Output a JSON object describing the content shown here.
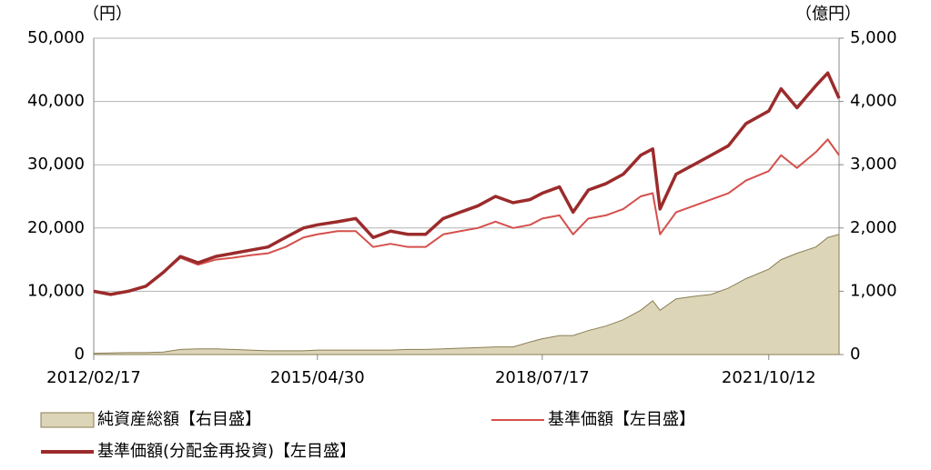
{
  "chart_data": {
    "type": "line",
    "y_label": "（円）",
    "y2_label": "（億円）",
    "x": [
      "2012/02/17",
      "2012/05/15",
      "2012/08/15",
      "2012/11/15",
      "2013/02/15",
      "2013/05/15",
      "2013/08/15",
      "2013/11/15",
      "2014/02/14",
      "2014/05/15",
      "2014/08/15",
      "2014/11/14",
      "2015/02/16",
      "2015/04/30",
      "2015/08/14",
      "2015/11/16",
      "2016/02/15",
      "2016/05/16",
      "2016/08/15",
      "2016/11/15",
      "2017/02/15",
      "2017/05/15",
      "2017/08/15",
      "2017/11/15",
      "2018/02/15",
      "2018/05/15",
      "2018/07/17",
      "2018/10/15",
      "2018/12/25",
      "2019/03/15",
      "2019/06/14",
      "2019/09/13",
      "2019/12/13",
      "2020/02/14",
      "2020/03/23",
      "2020/06/15",
      "2020/09/15",
      "2020/12/15",
      "2021/03/15",
      "2021/06/15",
      "2021/10/12",
      "2021/12/15",
      "2022/03/08",
      "2022/06/15",
      "2022/08/16",
      "2022/10/14"
    ],
    "xlim": [
      "2012/02/17",
      "2022/10/14"
    ],
    "xticks": [
      "2012/02/17",
      "2015/04/30",
      "2018/07/17",
      "2021/10/12"
    ],
    "ylim": [
      0,
      50000
    ],
    "yticks": [
      0,
      {
        "value": 10000,
        "label": "10,000"
      },
      {
        "value": 20000,
        "label": "20,000"
      },
      {
        "value": 30000,
        "label": "30,000"
      },
      {
        "value": 40000,
        "label": "40,000"
      },
      {
        "value": 50000,
        "label": "50,000"
      }
    ],
    "y2lim": [
      0,
      5000
    ],
    "y2ticks": [
      0,
      {
        "value": 1000,
        "label": "1,000"
      },
      {
        "value": 2000,
        "label": "2,000"
      },
      {
        "value": 3000,
        "label": "3,000"
      },
      {
        "value": 4000,
        "label": "4,000"
      },
      {
        "value": 5000,
        "label": "5,000"
      }
    ],
    "grid": true,
    "series": [
      {
        "name": "純資産総額【右目盛】",
        "type": "area",
        "axis": "y2",
        "color": "#ddd5b8",
        "edge_color": "#8a7e55",
        "values": [
          20,
          25,
          30,
          30,
          40,
          80,
          90,
          90,
          80,
          70,
          60,
          60,
          60,
          70,
          70,
          70,
          70,
          70,
          80,
          80,
          90,
          100,
          110,
          120,
          120,
          200,
          250,
          300,
          300,
          380,
          450,
          550,
          700,
          850,
          700,
          880,
          920,
          950,
          1050,
          1200,
          1350,
          1500,
          1600,
          1700,
          1850,
          1900
        ]
      },
      {
        "name": "基準価額【左目盛】",
        "type": "line",
        "color": "#d4504c",
        "values": [
          10000,
          9500,
          10000,
          10800,
          13000,
          15300,
          14200,
          15000,
          15300,
          15700,
          16000,
          17000,
          18500,
          19000,
          19500,
          19500,
          17000,
          17500,
          17000,
          17000,
          19000,
          19500,
          20000,
          21000,
          20000,
          20500,
          21500,
          22000,
          19000,
          21500,
          22000,
          23000,
          25000,
          25500,
          19000,
          22500,
          23500,
          24500,
          25500,
          27500,
          29000,
          31500,
          29500,
          32000,
          34000,
          31500
        ]
      },
      {
        "name": "基準価額(分配金再投資)【左目盛】",
        "type": "line",
        "color": "#9b2b2b",
        "values": [
          10000,
          9500,
          10000,
          10800,
          13000,
          15500,
          14500,
          15500,
          16000,
          16500,
          17000,
          18500,
          20000,
          20500,
          21000,
          21500,
          18500,
          19500,
          19000,
          19000,
          21500,
          22500,
          23500,
          25000,
          24000,
          24500,
          25500,
          26500,
          22500,
          26000,
          27000,
          28500,
          31500,
          32500,
          23000,
          28500,
          30000,
          31500,
          33000,
          36500,
          38500,
          42000,
          39000,
          42500,
          44500,
          40500
        ]
      }
    ]
  }
}
